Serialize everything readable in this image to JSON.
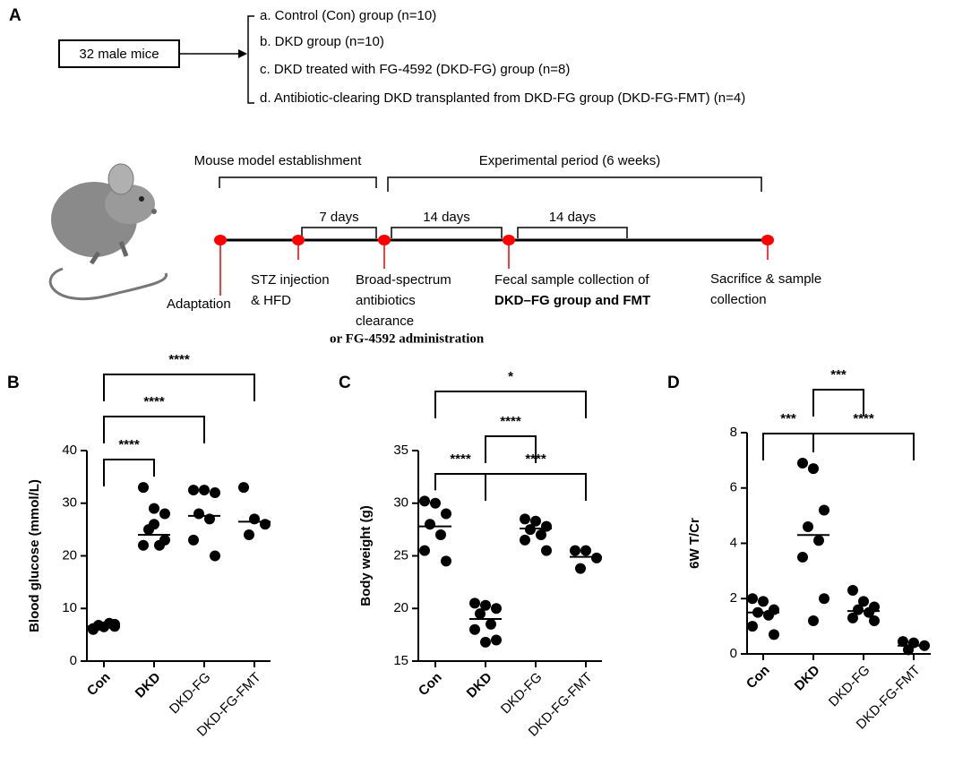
{
  "panel_a": {
    "label": "A",
    "source": "32 male mice",
    "groups": [
      "a. Control (Con) group (n=10)",
      "b. DKD group (n=10)",
      "c.  DKD treated with FG-4592 (DKD-FG) group (n=8)",
      "d. Antibiotic-clearing DKD transplanted from DKD-FG group (DKD-FG-FMT) (n=4)"
    ],
    "phases": [
      "Mouse model establishment",
      "Experimental period (6 weeks)"
    ],
    "intervals": [
      "7 days",
      "14 days",
      "14 days"
    ],
    "events": [
      {
        "lines": [
          "Adaptation"
        ]
      },
      {
        "lines": [
          "STZ injection",
          "& HFD"
        ]
      },
      {
        "lines": [
          "Broad-spectrum",
          "antibiotics",
          "clearance"
        ],
        "note": "or FG-4592 administration"
      },
      {
        "lines": [
          "Fecal sample collection of",
          "DKD–FG  group and FMT"
        ]
      },
      {
        "lines": [
          "Sacrifice & sample",
          "collection"
        ]
      }
    ]
  },
  "chart_data": [
    {
      "type": "dot",
      "panel": "B",
      "ylabel": "Blood glucose (mmol/L)",
      "color": "#000000",
      "categories": [
        "Con",
        "DKD",
        "DKD-FG",
        "DKD-FG-FMT"
      ],
      "values": [
        [
          6.2,
          6.5,
          7.0,
          6.8,
          7.2,
          6.0,
          6.6
        ],
        [
          33,
          29,
          28,
          25,
          22,
          22,
          23,
          26
        ],
        [
          32.5,
          32.5,
          32,
          28,
          27,
          23,
          20
        ],
        [
          33,
          27,
          26,
          24
        ]
      ],
      "medians": [
        6.6,
        24,
        27.6,
        26.5
      ],
      "ylim": [
        0,
        40
      ],
      "yticks": [
        0,
        10,
        20,
        30,
        40
      ],
      "comparisons": [
        {
          "groups": [
            "Con",
            "DKD"
          ],
          "label": "****"
        },
        {
          "groups": [
            "Con",
            "DKD-FG"
          ],
          "label": "****"
        },
        {
          "groups": [
            "Con",
            "DKD-FG-FMT"
          ],
          "label": "****"
        }
      ]
    },
    {
      "type": "dot",
      "panel": "C",
      "ylabel": "Body weight (g)",
      "color": "#000000",
      "categories": [
        "Con",
        "DKD",
        "DKD-FG",
        "DKD-FG-FMT"
      ],
      "values": [
        [
          30.2,
          30,
          29,
          28,
          27,
          25.5,
          24.5
        ],
        [
          20.5,
          20.3,
          20,
          19.5,
          18.5,
          18,
          17,
          16.8
        ],
        [
          28.5,
          28.3,
          27.8,
          27.5,
          27,
          26.5,
          25.5
        ],
        [
          25.5,
          25.5,
          24.8,
          23.8
        ]
      ],
      "medians": [
        27.8,
        19,
        27.6,
        24.9
      ],
      "ylim": [
        15,
        35
      ],
      "yticks": [
        15,
        20,
        25,
        30,
        35
      ],
      "comparisons": [
        {
          "groups": [
            "Con",
            "DKD-FG-FMT"
          ],
          "label": "*"
        },
        {
          "groups": [
            "DKD",
            "DKD-FG"
          ],
          "label": "****"
        },
        {
          "groups": [
            "Con",
            "DKD"
          ],
          "label": "****"
        },
        {
          "groups": [
            "DKD",
            "DKD-FG-FMT"
          ],
          "label": "****"
        }
      ]
    },
    {
      "type": "dot",
      "panel": "D",
      "ylabel": "6W T/Cr",
      "color": "#000000",
      "categories": [
        "Con",
        "DKD",
        "DKD-FG",
        "DKD-FG-FMT"
      ],
      "values": [
        [
          2.0,
          1.9,
          1.6,
          1.5,
          1.4,
          1.0,
          0.7
        ],
        [
          6.9,
          6.7,
          5.2,
          4.6,
          4.1,
          3.5,
          2.0,
          1.2
        ],
        [
          2.3,
          1.9,
          1.7,
          1.6,
          1.5,
          1.3,
          1.2
        ],
        [
          0.45,
          0.4,
          0.3,
          0.15
        ]
      ],
      "medians": [
        1.5,
        4.3,
        1.55,
        0.3
      ],
      "ylim": [
        0,
        8
      ],
      "yticks": [
        0,
        2,
        4,
        6,
        8
      ],
      "comparisons": [
        {
          "groups": [
            "Con",
            "DKD"
          ],
          "label": "***"
        },
        {
          "groups": [
            "DKD",
            "DKD-FG"
          ],
          "label": "***"
        },
        {
          "groups": [
            "DKD",
            "DKD-FG-FMT"
          ],
          "label": "****"
        }
      ]
    }
  ]
}
